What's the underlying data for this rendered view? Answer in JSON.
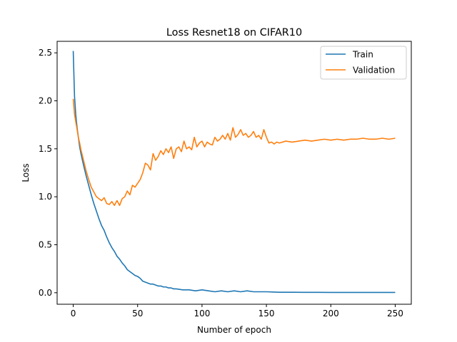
{
  "chart_data": {
    "type": "line",
    "title": "Loss Resnet18 on CIFAR10",
    "xlabel": "Number of epoch",
    "ylabel": "Loss",
    "xlim": [
      -12.5,
      262.5
    ],
    "ylim": [
      -0.12,
      2.62
    ],
    "xticks": [
      0,
      50,
      100,
      150,
      200,
      250
    ],
    "xtick_labels": [
      "0",
      "50",
      "100",
      "150",
      "200",
      "250"
    ],
    "yticks": [
      0.0,
      0.5,
      1.0,
      1.5,
      2.0,
      2.5
    ],
    "ytick_labels": [
      "0.0",
      "0.5",
      "1.0",
      "1.5",
      "2.0",
      "2.5"
    ],
    "grid": false,
    "legend_position": "top-right",
    "series": [
      {
        "name": "Train",
        "color": "#1f77b4",
        "x": [
          0,
          1,
          2,
          3,
          4,
          5,
          6,
          8,
          10,
          12,
          14,
          16,
          18,
          20,
          22,
          24,
          26,
          28,
          30,
          32,
          34,
          36,
          38,
          40,
          42,
          44,
          46,
          48,
          50,
          52,
          54,
          56,
          58,
          60,
          62,
          64,
          66,
          68,
          70,
          72,
          74,
          76,
          78,
          80,
          85,
          90,
          95,
          100,
          105,
          110,
          115,
          120,
          125,
          130,
          135,
          140,
          145,
          150,
          160,
          170,
          180,
          190,
          200,
          210,
          220,
          230,
          240,
          250
        ],
        "y": [
          2.52,
          2.05,
          1.85,
          1.72,
          1.62,
          1.52,
          1.45,
          1.33,
          1.22,
          1.12,
          1.02,
          0.93,
          0.85,
          0.77,
          0.7,
          0.65,
          0.58,
          0.52,
          0.47,
          0.43,
          0.38,
          0.35,
          0.31,
          0.28,
          0.24,
          0.22,
          0.2,
          0.18,
          0.17,
          0.15,
          0.12,
          0.11,
          0.1,
          0.09,
          0.09,
          0.08,
          0.07,
          0.07,
          0.06,
          0.06,
          0.05,
          0.05,
          0.04,
          0.04,
          0.03,
          0.03,
          0.02,
          0.03,
          0.02,
          0.01,
          0.02,
          0.01,
          0.02,
          0.01,
          0.02,
          0.01,
          0.01,
          0.01,
          0.005,
          0.005,
          0.004,
          0.004,
          0.003,
          0.003,
          0.003,
          0.003,
          0.003,
          0.003
        ]
      },
      {
        "name": "Validation",
        "color": "#ff7f0e",
        "x": [
          0,
          1,
          2,
          3,
          4,
          5,
          6,
          8,
          10,
          12,
          14,
          16,
          18,
          20,
          22,
          24,
          26,
          28,
          30,
          32,
          34,
          36,
          38,
          40,
          42,
          44,
          46,
          48,
          50,
          52,
          54,
          56,
          58,
          60,
          62,
          64,
          66,
          68,
          70,
          72,
          74,
          76,
          78,
          80,
          82,
          84,
          86,
          88,
          90,
          92,
          94,
          96,
          98,
          100,
          102,
          104,
          106,
          108,
          110,
          112,
          114,
          116,
          118,
          120,
          122,
          124,
          126,
          128,
          130,
          132,
          134,
          136,
          138,
          140,
          142,
          144,
          146,
          148,
          150,
          152,
          154,
          156,
          158,
          160,
          165,
          170,
          175,
          180,
          185,
          190,
          195,
          200,
          205,
          210,
          215,
          220,
          225,
          230,
          235,
          240,
          245,
          250
        ],
        "y": [
          2.02,
          1.86,
          1.78,
          1.7,
          1.62,
          1.56,
          1.49,
          1.38,
          1.27,
          1.18,
          1.1,
          1.05,
          1.0,
          0.98,
          0.96,
          0.99,
          0.93,
          0.92,
          0.95,
          0.91,
          0.96,
          0.91,
          0.98,
          1.0,
          1.06,
          1.02,
          1.12,
          1.1,
          1.14,
          1.18,
          1.25,
          1.35,
          1.33,
          1.28,
          1.45,
          1.38,
          1.42,
          1.48,
          1.44,
          1.5,
          1.46,
          1.52,
          1.4,
          1.5,
          1.52,
          1.47,
          1.58,
          1.5,
          1.52,
          1.49,
          1.62,
          1.52,
          1.56,
          1.58,
          1.52,
          1.57,
          1.55,
          1.54,
          1.62,
          1.58,
          1.6,
          1.64,
          1.6,
          1.66,
          1.59,
          1.72,
          1.62,
          1.65,
          1.7,
          1.64,
          1.66,
          1.62,
          1.64,
          1.68,
          1.62,
          1.64,
          1.6,
          1.7,
          1.62,
          1.56,
          1.57,
          1.55,
          1.57,
          1.56,
          1.58,
          1.57,
          1.58,
          1.59,
          1.58,
          1.59,
          1.6,
          1.59,
          1.6,
          1.59,
          1.6,
          1.6,
          1.61,
          1.6,
          1.6,
          1.61,
          1.6,
          1.61
        ]
      }
    ]
  }
}
